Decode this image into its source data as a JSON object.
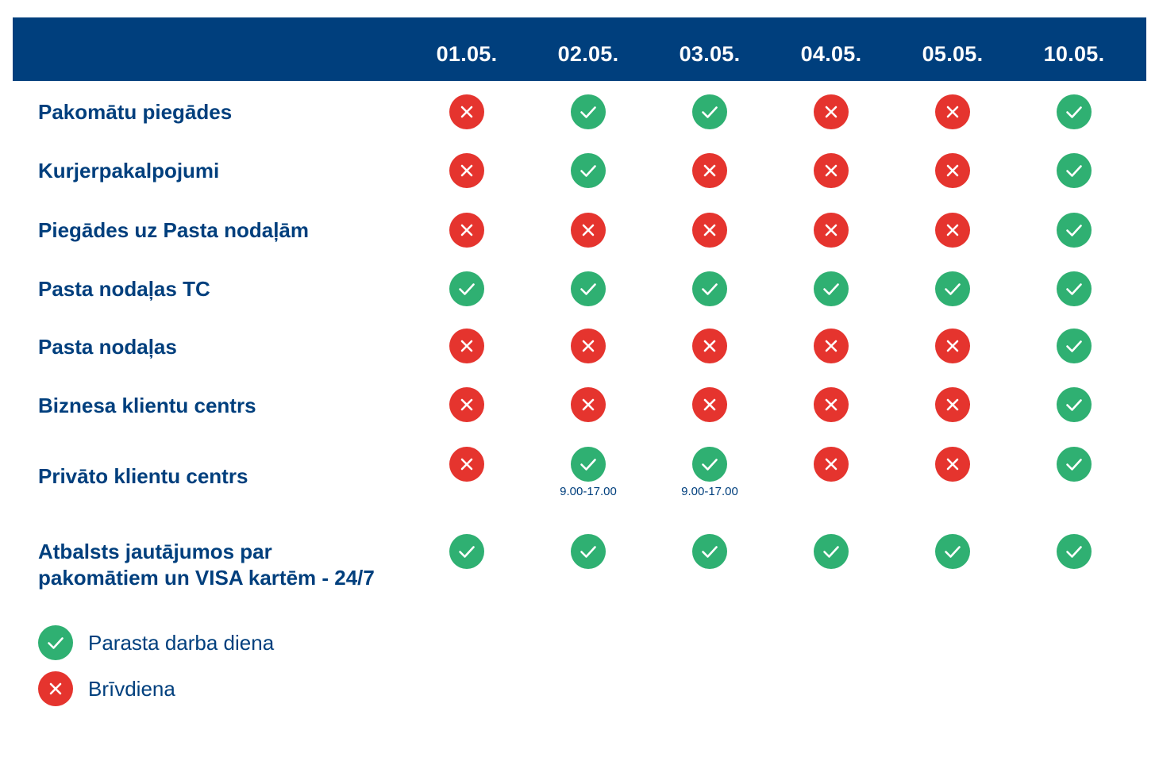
{
  "columns": [
    "01.05.",
    "02.05.",
    "03.05.",
    "04.05.",
    "05.05.",
    "10.05."
  ],
  "rows": [
    {
      "label": "Pakomātu piegādes",
      "status": [
        "no",
        "yes",
        "yes",
        "no",
        "no",
        "yes"
      ],
      "notes": [
        "",
        "",
        "",
        "",
        "",
        ""
      ]
    },
    {
      "label": "Kurjerpakalpojumi",
      "status": [
        "no",
        "yes",
        "no",
        "no",
        "no",
        "yes"
      ],
      "notes": [
        "",
        "",
        "",
        "",
        "",
        ""
      ]
    },
    {
      "label": "Piegādes uz Pasta nodaļām",
      "status": [
        "no",
        "no",
        "no",
        "no",
        "no",
        "yes"
      ],
      "notes": [
        "",
        "",
        "",
        "",
        "",
        ""
      ]
    },
    {
      "label": "Pasta nodaļas TC",
      "status": [
        "yes",
        "yes",
        "yes",
        "yes",
        "yes",
        "yes"
      ],
      "notes": [
        "",
        "",
        "",
        "",
        "",
        ""
      ]
    },
    {
      "label": "Pasta nodaļas",
      "status": [
        "no",
        "no",
        "no",
        "no",
        "no",
        "yes"
      ],
      "notes": [
        "",
        "",
        "",
        "",
        "",
        ""
      ]
    },
    {
      "label": "Biznesa klientu centrs",
      "status": [
        "no",
        "no",
        "no",
        "no",
        "no",
        "yes"
      ],
      "notes": [
        "",
        "",
        "",
        "",
        "",
        ""
      ]
    },
    {
      "label": "Privāto klientu centrs",
      "status": [
        "no",
        "yes",
        "yes",
        "no",
        "no",
        "yes"
      ],
      "notes": [
        "",
        "9.00-17.00",
        "9.00-17.00",
        "",
        "",
        ""
      ]
    },
    {
      "label_lines": [
        "Atbalsts jautājumos par",
        "pakomātiem un VISA kartēm - 24/7"
      ],
      "status": [
        "yes",
        "yes",
        "yes",
        "yes",
        "yes",
        "yes"
      ],
      "notes": [
        "",
        "",
        "",
        "",
        "",
        ""
      ]
    }
  ],
  "legend": {
    "working_day": "Parasta darba diena",
    "day_off": "Brīvdiena"
  },
  "colors": {
    "header_bg": "#003f7d",
    "text": "#003f7d",
    "yes": "#2fb072",
    "no": "#e5342e"
  },
  "icons": {
    "yes": "check-icon",
    "no": "cross-icon"
  }
}
